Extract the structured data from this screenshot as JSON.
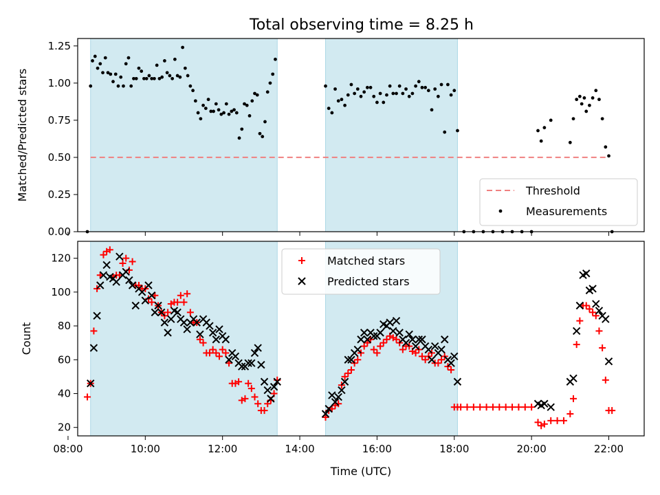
{
  "figure": {
    "title": "Total observing time = 8.25 h"
  },
  "chart_data": [
    {
      "type": "scatter",
      "ylabel": "Matched/Predicted stars",
      "xlabel": "",
      "xlim": [
        "08:15",
        "22:55"
      ],
      "ylim": [
        0,
        1.3
      ],
      "yticks": [
        "0.00",
        "0.25",
        "0.50",
        "0.75",
        "1.00",
        "1.25"
      ],
      "shaded_intervals": [
        [
          "08:35",
          "13:25"
        ],
        [
          "14:40",
          "18:05"
        ]
      ],
      "shade_color": "#add8e6",
      "legend": {
        "position": "lower-right"
      },
      "threshold": {
        "name": "Threshold",
        "value": 0.5,
        "x_range": [
          "08:35",
          "22:00"
        ],
        "color": "#f08080",
        "style": "dashed"
      },
      "series": [
        {
          "name": "Measurements",
          "color": "#000000",
          "marker": "dot",
          "x": [
            "08:30",
            "08:35",
            "08:38",
            "08:42",
            "08:46",
            "08:50",
            "08:54",
            "08:58",
            "09:02",
            "09:06",
            "09:10",
            "09:14",
            "09:18",
            "09:22",
            "09:26",
            "09:30",
            "09:34",
            "09:38",
            "09:42",
            "09:46",
            "09:50",
            "09:54",
            "09:58",
            "10:02",
            "10:06",
            "10:10",
            "10:14",
            "10:18",
            "10:22",
            "10:26",
            "10:30",
            "10:34",
            "10:38",
            "10:42",
            "10:46",
            "10:50",
            "10:54",
            "10:58",
            "11:02",
            "11:06",
            "11:10",
            "11:14",
            "11:18",
            "11:22",
            "11:26",
            "11:30",
            "11:34",
            "11:38",
            "11:42",
            "11:46",
            "11:50",
            "11:54",
            "11:58",
            "12:02",
            "12:06",
            "12:10",
            "12:14",
            "12:18",
            "12:22",
            "12:26",
            "12:30",
            "12:34",
            "12:38",
            "12:42",
            "12:46",
            "12:50",
            "12:54",
            "12:58",
            "13:02",
            "13:06",
            "13:10",
            "13:14",
            "13:18",
            "13:22",
            "14:40",
            "14:45",
            "14:50",
            "14:55",
            "15:00",
            "15:05",
            "15:10",
            "15:15",
            "15:20",
            "15:25",
            "15:30",
            "15:35",
            "15:40",
            "15:45",
            "15:50",
            "15:55",
            "16:00",
            "16:05",
            "16:10",
            "16:15",
            "16:20",
            "16:25",
            "16:30",
            "16:35",
            "16:40",
            "16:45",
            "16:50",
            "16:55",
            "17:00",
            "17:05",
            "17:10",
            "17:15",
            "17:20",
            "17:25",
            "17:30",
            "17:35",
            "17:40",
            "17:45",
            "17:50",
            "17:55",
            "18:00",
            "18:05",
            "18:15",
            "18:30",
            "18:45",
            "19:00",
            "19:15",
            "19:30",
            "19:45",
            "20:00",
            "20:10",
            "20:15",
            "20:20",
            "20:30",
            "21:00",
            "21:05",
            "21:10",
            "21:15",
            "21:18",
            "21:22",
            "21:25",
            "21:30",
            "21:35",
            "21:40",
            "21:45",
            "21:50",
            "21:55",
            "22:00",
            "22:05"
          ],
          "y": [
            0.0,
            0.98,
            1.15,
            1.18,
            1.1,
            1.13,
            1.07,
            1.17,
            1.07,
            1.06,
            1.01,
            1.06,
            0.98,
            1.04,
            0.98,
            1.13,
            1.17,
            0.98,
            1.03,
            1.03,
            1.1,
            1.08,
            1.03,
            1.03,
            1.05,
            1.03,
            1.03,
            1.12,
            1.03,
            1.04,
            1.15,
            1.07,
            1.05,
            1.03,
            1.16,
            1.05,
            1.04,
            1.24,
            1.1,
            1.05,
            0.98,
            0.95,
            0.88,
            0.8,
            0.76,
            0.85,
            0.83,
            0.89,
            0.81,
            0.81,
            0.86,
            0.82,
            0.79,
            0.8,
            0.86,
            0.79,
            0.81,
            0.82,
            0.8,
            0.63,
            0.69,
            0.86,
            0.85,
            0.78,
            0.88,
            0.93,
            0.92,
            0.66,
            0.64,
            0.74,
            0.94,
            1.0,
            1.06,
            1.16,
            0.98,
            0.83,
            0.8,
            0.96,
            0.88,
            0.89,
            0.85,
            0.92,
            0.99,
            0.93,
            0.96,
            0.91,
            0.94,
            0.97,
            0.97,
            0.91,
            0.87,
            0.93,
            0.87,
            0.92,
            0.98,
            0.93,
            0.93,
            0.98,
            0.93,
            0.96,
            0.91,
            0.93,
            0.98,
            1.01,
            0.97,
            0.97,
            0.95,
            0.82,
            0.96,
            0.91,
            0.99,
            0.67,
            0.99,
            0.92,
            0.95,
            0.68,
            0.0,
            0.0,
            0.0,
            0.0,
            0.0,
            0.0,
            0.0,
            0.0,
            0.68,
            0.61,
            0.7,
            0.75,
            0.6,
            0.76,
            0.89,
            0.91,
            0.86,
            0.9,
            0.81,
            0.85,
            0.9,
            0.95,
            0.89,
            0.76,
            0.57,
            0.51,
            0.0
          ]
        }
      ]
    },
    {
      "type": "scatter",
      "xlabel": "Time (UTC)",
      "ylabel": "Count",
      "xlim": [
        "08:15",
        "22:55"
      ],
      "ylim": [
        15,
        130
      ],
      "xticks": [
        "08:00",
        "10:00",
        "12:00",
        "14:00",
        "16:00",
        "18:00",
        "20:00",
        "22:00"
      ],
      "yticks": [
        "20",
        "40",
        "60",
        "80",
        "100",
        "120"
      ],
      "shaded_intervals": [
        [
          "08:35",
          "13:25"
        ],
        [
          "14:40",
          "18:05"
        ]
      ],
      "shade_color": "#add8e6",
      "legend": {
        "position": "upper-center"
      },
      "series": [
        {
          "name": "Matched stars",
          "color": "#ff0000",
          "marker": "plus",
          "x": [
            "08:30",
            "08:35",
            "08:40",
            "08:45",
            "08:50",
            "08:55",
            "09:00",
            "09:05",
            "09:10",
            "09:15",
            "09:20",
            "09:25",
            "09:30",
            "09:35",
            "09:40",
            "09:45",
            "09:50",
            "09:55",
            "10:00",
            "10:05",
            "10:10",
            "10:15",
            "10:20",
            "10:25",
            "10:30",
            "10:35",
            "10:40",
            "10:45",
            "10:50",
            "10:55",
            "11:00",
            "11:05",
            "11:10",
            "11:15",
            "11:20",
            "11:25",
            "11:30",
            "11:35",
            "11:40",
            "11:45",
            "11:50",
            "11:55",
            "12:00",
            "12:05",
            "12:10",
            "12:15",
            "12:20",
            "12:25",
            "12:30",
            "12:35",
            "12:40",
            "12:45",
            "12:50",
            "12:55",
            "13:00",
            "13:05",
            "13:10",
            "13:15",
            "13:20",
            "13:25",
            "14:40",
            "14:45",
            "14:50",
            "14:55",
            "15:00",
            "15:05",
            "15:10",
            "15:15",
            "15:20",
            "15:25",
            "15:30",
            "15:35",
            "15:40",
            "15:45",
            "15:50",
            "15:55",
            "16:00",
            "16:05",
            "16:10",
            "16:15",
            "16:20",
            "16:25",
            "16:30",
            "16:35",
            "16:40",
            "16:45",
            "16:50",
            "16:55",
            "17:00",
            "17:05",
            "17:10",
            "17:15",
            "17:20",
            "17:25",
            "17:30",
            "17:35",
            "17:40",
            "17:45",
            "17:50",
            "17:55",
            "18:00",
            "18:05",
            "18:10",
            "18:20",
            "18:30",
            "18:40",
            "18:50",
            "19:00",
            "19:10",
            "19:20",
            "19:30",
            "19:40",
            "19:50",
            "20:00",
            "20:10",
            "20:15",
            "20:20",
            "20:30",
            "20:40",
            "20:50",
            "21:00",
            "21:05",
            "21:10",
            "21:15",
            "21:20",
            "21:25",
            "21:30",
            "21:35",
            "21:40",
            "21:45",
            "21:50",
            "21:55",
            "22:00",
            "22:05"
          ],
          "y": [
            38,
            46,
            77,
            102,
            110,
            122,
            124,
            125,
            109,
            110,
            110,
            117,
            120,
            113,
            118,
            104,
            104,
            102,
            102,
            96,
            94,
            98,
            92,
            88,
            86,
            88,
            93,
            94,
            94,
            98,
            94,
            99,
            88,
            82,
            82,
            72,
            70,
            64,
            64,
            66,
            64,
            62,
            66,
            64,
            58,
            46,
            46,
            47,
            36,
            37,
            46,
            43,
            38,
            34,
            30,
            30,
            34,
            36,
            40,
            48,
            26,
            30,
            31,
            33,
            34,
            45,
            50,
            52,
            54,
            58,
            60,
            64,
            68,
            70,
            72,
            66,
            64,
            68,
            70,
            72,
            74,
            73,
            72,
            70,
            66,
            68,
            68,
            65,
            64,
            66,
            62,
            60,
            62,
            64,
            58,
            58,
            60,
            62,
            56,
            54,
            32,
            32,
            32,
            32,
            32,
            32,
            32,
            32,
            32,
            32,
            32,
            32,
            32,
            32,
            23,
            21,
            22,
            24,
            24,
            24,
            28,
            37,
            69,
            83,
            92,
            92,
            90,
            88,
            86,
            77,
            67,
            48,
            30,
            30
          ]
        },
        {
          "name": "Predicted stars",
          "color": "#000000",
          "marker": "x",
          "x": [
            "08:35",
            "08:40",
            "08:45",
            "08:50",
            "08:55",
            "09:00",
            "09:05",
            "09:10",
            "09:15",
            "09:20",
            "09:25",
            "09:30",
            "09:35",
            "09:40",
            "09:45",
            "09:50",
            "09:55",
            "10:00",
            "10:05",
            "10:10",
            "10:15",
            "10:20",
            "10:25",
            "10:30",
            "10:35",
            "10:40",
            "10:45",
            "10:50",
            "10:55",
            "11:00",
            "11:05",
            "11:10",
            "11:15",
            "11:20",
            "11:25",
            "11:30",
            "11:35",
            "11:40",
            "11:45",
            "11:50",
            "11:55",
            "12:00",
            "12:05",
            "12:10",
            "12:15",
            "12:20",
            "12:25",
            "12:30",
            "12:35",
            "12:40",
            "12:45",
            "12:50",
            "12:55",
            "13:00",
            "13:05",
            "13:10",
            "13:15",
            "13:20",
            "13:25",
            "14:40",
            "14:45",
            "14:50",
            "14:55",
            "15:00",
            "15:05",
            "15:10",
            "15:15",
            "15:20",
            "15:25",
            "15:30",
            "15:35",
            "15:40",
            "15:45",
            "15:50",
            "15:55",
            "16:00",
            "16:05",
            "16:10",
            "16:15",
            "16:20",
            "16:25",
            "16:30",
            "16:35",
            "16:40",
            "16:45",
            "16:50",
            "16:55",
            "17:00",
            "17:05",
            "17:10",
            "17:15",
            "17:20",
            "17:25",
            "17:30",
            "17:35",
            "17:40",
            "17:45",
            "17:50",
            "17:55",
            "18:00",
            "18:05",
            "20:10",
            "20:15",
            "20:20",
            "20:30",
            "21:00",
            "21:05",
            "21:10",
            "21:15",
            "21:20",
            "21:25",
            "21:30",
            "21:35",
            "21:40",
            "21:45",
            "21:50",
            "21:55",
            "22:00"
          ],
          "y": [
            46,
            67,
            86,
            104,
            110,
            116,
            109,
            108,
            106,
            121,
            110,
            112,
            107,
            104,
            92,
            102,
            100,
            95,
            104,
            98,
            88,
            92,
            88,
            82,
            76,
            84,
            89,
            88,
            84,
            82,
            78,
            82,
            84,
            82,
            75,
            84,
            82,
            80,
            76,
            72,
            78,
            74,
            72,
            60,
            64,
            62,
            58,
            56,
            56,
            58,
            58,
            64,
            67,
            57,
            47,
            42,
            37,
            44,
            47,
            28,
            31,
            39,
            35,
            38,
            42,
            47,
            60,
            60,
            64,
            66,
            72,
            76,
            72,
            76,
            74,
            74,
            76,
            81,
            80,
            82,
            77,
            83,
            76,
            72,
            70,
            75,
            72,
            68,
            72,
            72,
            68,
            66,
            60,
            68,
            64,
            66,
            72,
            60,
            58,
            62,
            47,
            34,
            33,
            34,
            32,
            47,
            49,
            77,
            92,
            110,
            111,
            101,
            102,
            93,
            89,
            86,
            84,
            59
          ]
        }
      ]
    }
  ]
}
